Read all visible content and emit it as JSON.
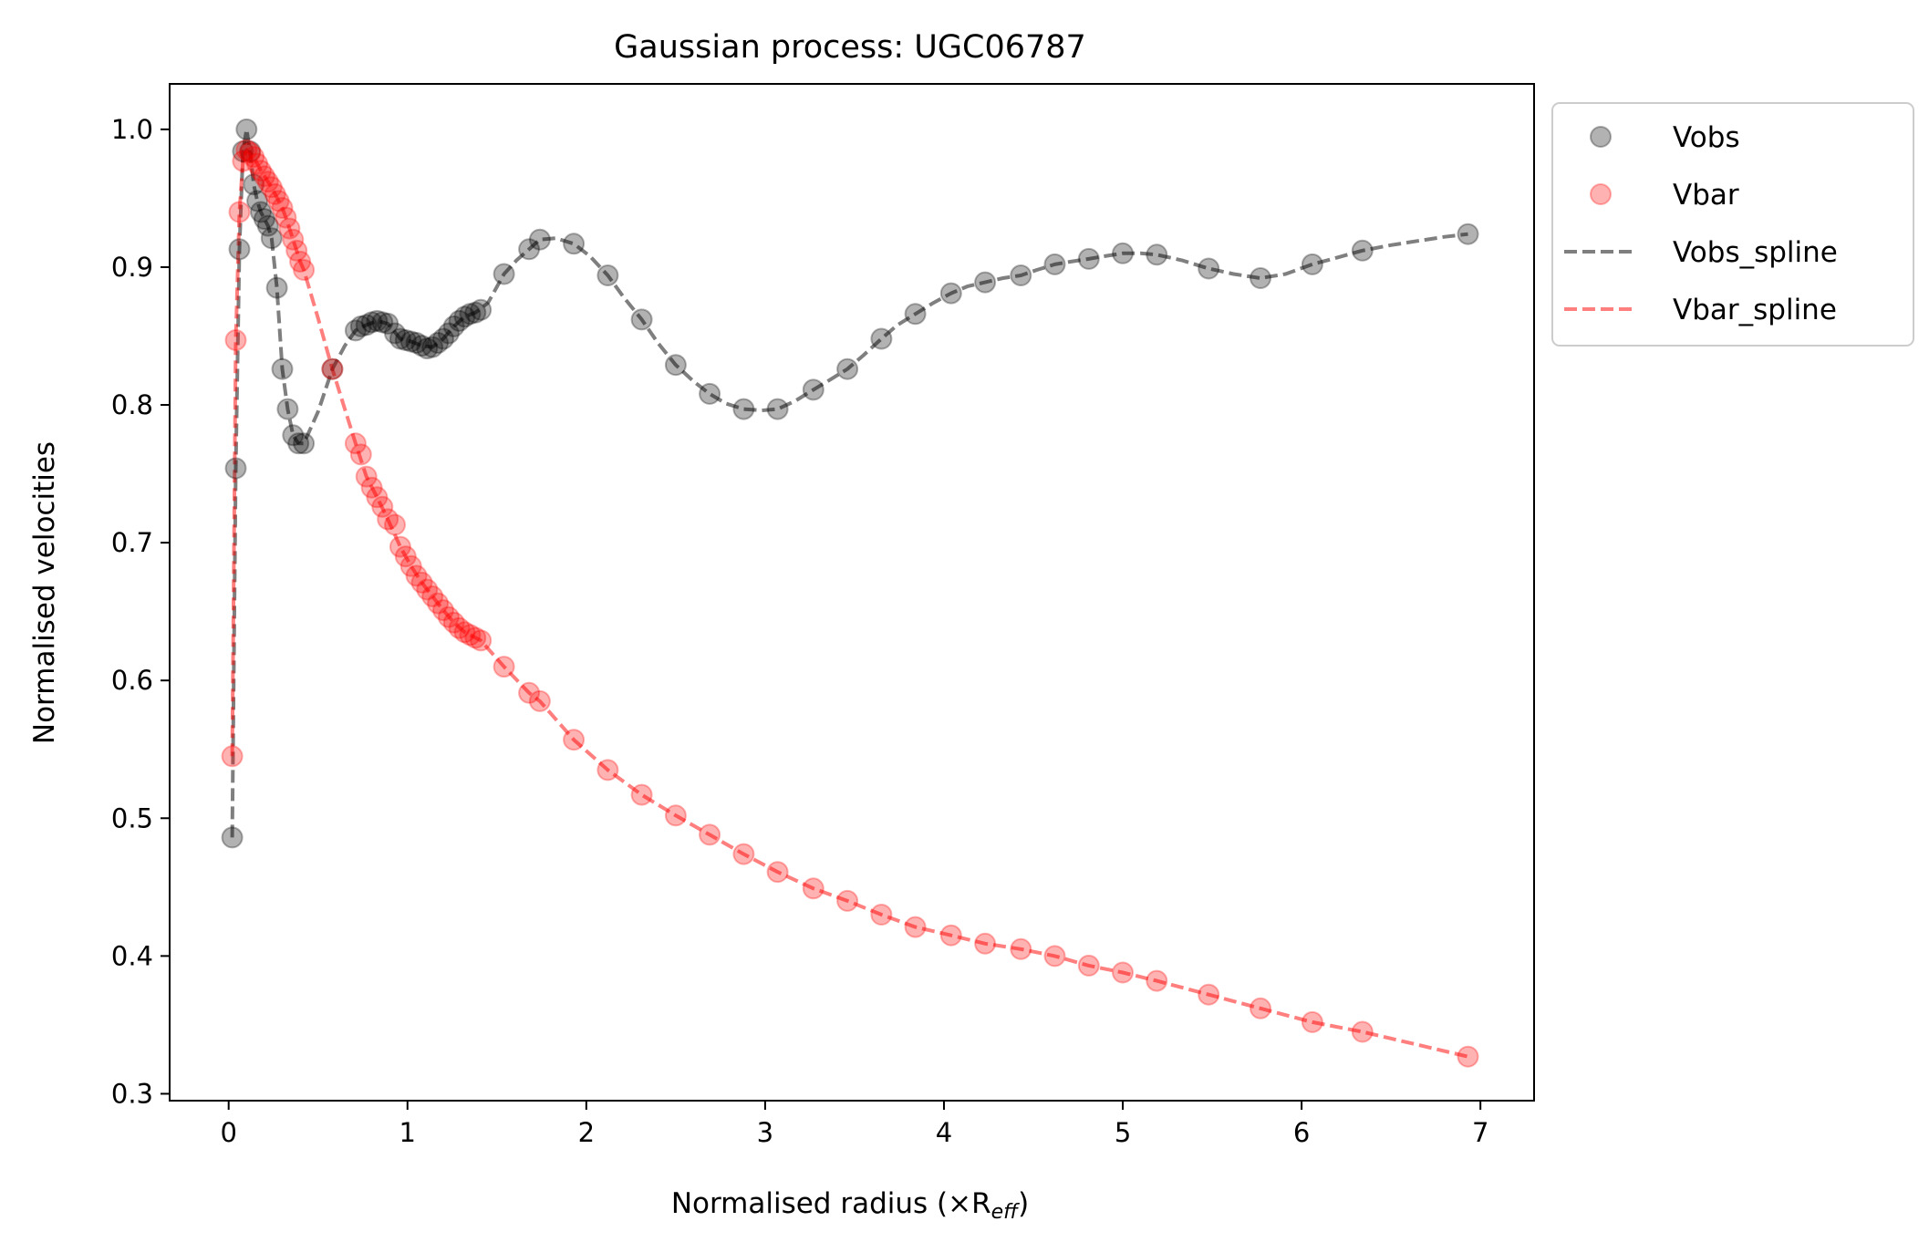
{
  "chart_data": {
    "type": "scatter",
    "title": "Gaussian process: UGC06787",
    "xlabel": "Normalised radius (×R",
    "xlabel_sub": "eff",
    "xlabel_close": ")",
    "ylabel": "Normalised velocities",
    "xlim": [
      -0.33,
      7.3
    ],
    "ylim": [
      0.295,
      1.033
    ],
    "xticks": [
      0,
      1,
      2,
      3,
      4,
      5,
      6,
      7
    ],
    "xtick_labels": [
      "0",
      "1",
      "2",
      "3",
      "4",
      "5",
      "6",
      "7"
    ],
    "yticks": [
      0.3,
      0.4,
      0.5,
      0.6,
      0.7,
      0.8,
      0.9,
      1.0
    ],
    "ytick_labels": [
      "0.3",
      "0.4",
      "0.5",
      "0.6",
      "0.7",
      "0.8",
      "0.9",
      "1.0"
    ],
    "grid": false,
    "legend_position": "outside upper right",
    "series": [
      {
        "name": "Vobs",
        "kind": "scatter",
        "color": "#000000",
        "x": [
          0.02,
          0.04,
          0.06,
          0.08,
          0.1,
          0.12,
          0.14,
          0.16,
          0.18,
          0.2,
          0.22,
          0.24,
          0.27,
          0.3,
          0.33,
          0.36,
          0.39,
          0.42,
          0.58,
          0.71,
          0.74,
          0.77,
          0.8,
          0.83,
          0.86,
          0.89,
          0.93,
          0.96,
          0.99,
          1.02,
          1.05,
          1.08,
          1.11,
          1.14,
          1.17,
          1.2,
          1.23,
          1.26,
          1.29,
          1.32,
          1.35,
          1.38,
          1.41,
          1.54,
          1.68,
          1.74,
          1.93,
          2.12,
          2.31,
          2.5,
          2.69,
          2.88,
          3.07,
          3.27,
          3.46,
          3.65,
          3.84,
          4.04,
          4.23,
          4.43,
          4.62,
          4.81,
          5.0,
          5.19,
          5.48,
          5.77,
          6.06,
          6.34,
          6.93
        ],
        "y": [
          0.486,
          0.754,
          0.913,
          0.984,
          1.0,
          0.984,
          0.96,
          0.948,
          0.94,
          0.935,
          0.93,
          0.921,
          0.885,
          0.826,
          0.797,
          0.778,
          0.772,
          0.772,
          0.826,
          0.854,
          0.857,
          0.858,
          0.86,
          0.861,
          0.86,
          0.859,
          0.852,
          0.848,
          0.847,
          0.846,
          0.845,
          0.843,
          0.841,
          0.842,
          0.845,
          0.848,
          0.852,
          0.857,
          0.861,
          0.864,
          0.866,
          0.867,
          0.869,
          0.895,
          0.913,
          0.92,
          0.917,
          0.894,
          0.862,
          0.829,
          0.808,
          0.797,
          0.797,
          0.811,
          0.826,
          0.848,
          0.866,
          0.881,
          0.889,
          0.894,
          0.902,
          0.906,
          0.91,
          0.909,
          0.899,
          0.892,
          0.902,
          0.912,
          0.924
        ]
      },
      {
        "name": "Vbar",
        "kind": "scatter",
        "color": "#ff0000",
        "x": [
          0.02,
          0.04,
          0.06,
          0.08,
          0.1,
          0.12,
          0.14,
          0.16,
          0.18,
          0.2,
          0.22,
          0.24,
          0.26,
          0.28,
          0.3,
          0.32,
          0.34,
          0.36,
          0.38,
          0.4,
          0.42,
          0.58,
          0.71,
          0.74,
          0.77,
          0.8,
          0.83,
          0.86,
          0.89,
          0.93,
          0.96,
          0.99,
          1.02,
          1.05,
          1.08,
          1.11,
          1.14,
          1.17,
          1.2,
          1.23,
          1.26,
          1.29,
          1.32,
          1.35,
          1.38,
          1.41,
          1.54,
          1.68,
          1.74,
          1.93,
          2.12,
          2.31,
          2.5,
          2.69,
          2.88,
          3.07,
          3.27,
          3.46,
          3.65,
          3.84,
          4.04,
          4.23,
          4.43,
          4.62,
          4.81,
          5.0,
          5.19,
          5.48,
          5.77,
          6.06,
          6.34,
          6.93
        ],
        "y": [
          0.545,
          0.847,
          0.94,
          0.977,
          0.985,
          0.983,
          0.98,
          0.975,
          0.97,
          0.966,
          0.962,
          0.958,
          0.953,
          0.948,
          0.943,
          0.936,
          0.928,
          0.92,
          0.912,
          0.904,
          0.898,
          0.826,
          0.772,
          0.764,
          0.748,
          0.74,
          0.733,
          0.726,
          0.717,
          0.713,
          0.697,
          0.69,
          0.683,
          0.676,
          0.671,
          0.666,
          0.661,
          0.656,
          0.651,
          0.646,
          0.642,
          0.638,
          0.635,
          0.633,
          0.631,
          0.629,
          0.61,
          0.591,
          0.585,
          0.557,
          0.535,
          0.517,
          0.502,
          0.488,
          0.474,
          0.461,
          0.449,
          0.44,
          0.43,
          0.421,
          0.415,
          0.409,
          0.405,
          0.4,
          0.393,
          0.388,
          0.382,
          0.372,
          0.362,
          0.352,
          0.345,
          0.327
        ]
      },
      {
        "name": "Vobs_spline",
        "kind": "line",
        "dash": "dashed",
        "color": "#000000",
        "x": [
          0.02,
          0.04,
          0.06,
          0.08,
          0.1,
          0.12,
          0.14,
          0.16,
          0.18,
          0.2,
          0.22,
          0.24,
          0.27,
          0.3,
          0.33,
          0.36,
          0.39,
          0.42,
          0.5,
          0.58,
          0.65,
          0.71,
          0.77,
          0.83,
          0.89,
          0.96,
          1.02,
          1.08,
          1.14,
          1.2,
          1.26,
          1.32,
          1.38,
          1.45,
          1.54,
          1.61,
          1.68,
          1.74,
          1.83,
          1.93,
          2.02,
          2.12,
          2.21,
          2.31,
          2.4,
          2.5,
          2.6,
          2.69,
          2.78,
          2.88,
          2.98,
          3.07,
          3.17,
          3.27,
          3.36,
          3.46,
          3.55,
          3.65,
          3.74,
          3.84,
          3.94,
          4.04,
          4.13,
          4.23,
          4.33,
          4.43,
          4.52,
          4.62,
          4.71,
          4.81,
          4.9,
          5.0,
          5.1,
          5.19,
          5.33,
          5.48,
          5.62,
          5.77,
          5.91,
          6.06,
          6.2,
          6.34,
          6.5,
          6.65,
          6.8,
          6.93
        ],
        "y": [
          0.486,
          0.754,
          0.913,
          0.984,
          1.0,
          0.984,
          0.96,
          0.948,
          0.94,
          0.935,
          0.93,
          0.921,
          0.885,
          0.826,
          0.797,
          0.778,
          0.772,
          0.772,
          0.795,
          0.826,
          0.843,
          0.854,
          0.858,
          0.861,
          0.859,
          0.848,
          0.846,
          0.843,
          0.842,
          0.848,
          0.857,
          0.864,
          0.867,
          0.874,
          0.895,
          0.905,
          0.913,
          0.92,
          0.921,
          0.917,
          0.908,
          0.894,
          0.878,
          0.862,
          0.845,
          0.829,
          0.817,
          0.808,
          0.801,
          0.797,
          0.796,
          0.797,
          0.803,
          0.811,
          0.818,
          0.826,
          0.836,
          0.848,
          0.858,
          0.866,
          0.874,
          0.881,
          0.886,
          0.889,
          0.892,
          0.894,
          0.898,
          0.902,
          0.904,
          0.906,
          0.908,
          0.91,
          0.91,
          0.909,
          0.905,
          0.899,
          0.895,
          0.892,
          0.895,
          0.902,
          0.907,
          0.912,
          0.916,
          0.919,
          0.922,
          0.924
        ]
      },
      {
        "name": "Vbar_spline",
        "kind": "line",
        "dash": "dashed",
        "color": "#ff0000",
        "x": [
          0.02,
          0.04,
          0.06,
          0.08,
          0.1,
          0.12,
          0.14,
          0.16,
          0.18,
          0.2,
          0.22,
          0.24,
          0.26,
          0.28,
          0.3,
          0.32,
          0.34,
          0.36,
          0.38,
          0.4,
          0.42,
          0.5,
          0.58,
          0.65,
          0.71,
          0.77,
          0.83,
          0.89,
          0.96,
          1.02,
          1.08,
          1.14,
          1.2,
          1.26,
          1.32,
          1.38,
          1.41,
          1.54,
          1.68,
          1.74,
          1.93,
          2.12,
          2.31,
          2.5,
          2.69,
          2.88,
          3.07,
          3.27,
          3.46,
          3.65,
          3.84,
          4.04,
          4.23,
          4.43,
          4.62,
          4.81,
          5.0,
          5.19,
          5.48,
          5.77,
          6.06,
          6.34,
          6.93
        ],
        "y": [
          0.545,
          0.847,
          0.94,
          0.977,
          0.985,
          0.983,
          0.98,
          0.975,
          0.97,
          0.966,
          0.962,
          0.958,
          0.953,
          0.948,
          0.943,
          0.936,
          0.928,
          0.92,
          0.912,
          0.904,
          0.898,
          0.863,
          0.826,
          0.797,
          0.772,
          0.748,
          0.733,
          0.717,
          0.697,
          0.683,
          0.671,
          0.661,
          0.651,
          0.642,
          0.635,
          0.631,
          0.629,
          0.61,
          0.591,
          0.585,
          0.557,
          0.535,
          0.517,
          0.502,
          0.488,
          0.474,
          0.461,
          0.449,
          0.44,
          0.43,
          0.421,
          0.415,
          0.409,
          0.405,
          0.4,
          0.393,
          0.388,
          0.382,
          0.372,
          0.362,
          0.352,
          0.345,
          0.327
        ]
      }
    ]
  }
}
